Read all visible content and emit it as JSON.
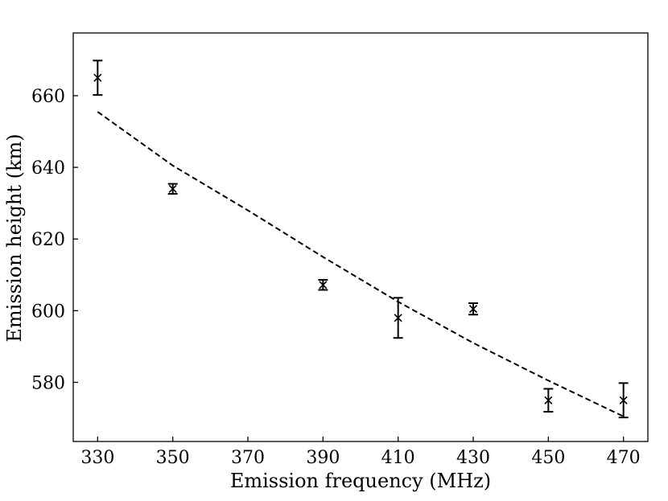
{
  "chart_data": {
    "type": "scatter",
    "title": "",
    "xlabel": "Emission frequency (MHz)",
    "ylabel": "Emission height (km)",
    "xlim": [
      323.5,
      476.5
    ],
    "ylim": [
      563.5,
      677.5
    ],
    "x_ticks": [
      "330",
      "350",
      "370",
      "390",
      "410",
      "430",
      "450",
      "470"
    ],
    "y_ticks": [
      "580",
      "600",
      "620",
      "640",
      "660"
    ],
    "grid": false,
    "legend": "none",
    "series": [
      {
        "kind": "errorbar",
        "marker": "x",
        "color": "#000000",
        "points": [
          {
            "x": 330,
            "y": 665.0,
            "err": 4.8
          },
          {
            "x": 350,
            "y": 634.0,
            "err": 1.4
          },
          {
            "x": 390,
            "y": 607.2,
            "err": 1.4
          },
          {
            "x": 410,
            "y": 598.0,
            "err": 5.6
          },
          {
            "x": 430,
            "y": 600.5,
            "err": 1.6
          },
          {
            "x": 450,
            "y": 575.0,
            "err": 3.2
          },
          {
            "x": 470,
            "y": 575.0,
            "err": 4.8
          }
        ]
      },
      {
        "kind": "line",
        "style": "dashed",
        "color": "#000000",
        "x": [
          330,
          350,
          370,
          390,
          410,
          430,
          450,
          470
        ],
        "y": [
          655.5,
          640.5,
          628.0,
          615.0,
          602.5,
          591.0,
          580.5,
          570.5
        ]
      }
    ]
  }
}
